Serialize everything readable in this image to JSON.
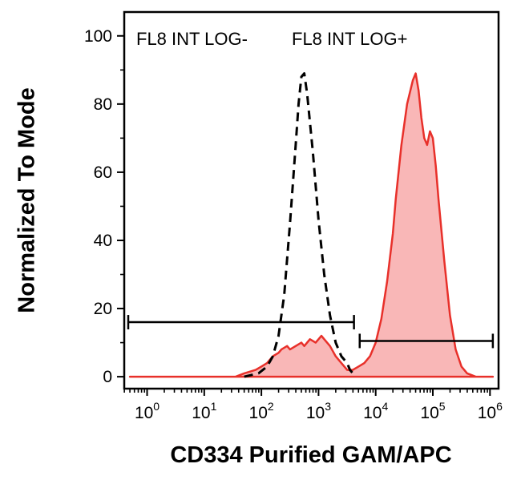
{
  "chart_data": {
    "type": "area",
    "subtype": "flow-cytometry-histogram",
    "title": "",
    "xlabel": "CD334 Purified GAM/APC",
    "ylabel": "Normalized To Mode",
    "x_scale": "log10",
    "x_tick_base": "10",
    "x_tick_exponents": [
      0,
      1,
      2,
      3,
      4,
      5,
      6
    ],
    "y_ticks": [
      0,
      20,
      40,
      60,
      80,
      100
    ],
    "ylim": [
      0,
      100
    ],
    "grid": false,
    "legend": "none",
    "colors": {
      "stained_fill": "#f47c7c",
      "stained_stroke": "#e8302a",
      "control_stroke": "#000000",
      "axis": "#000000"
    },
    "series": [
      {
        "name": "FL8 INT LOG- (control)",
        "style": "dashed",
        "points_log10x_y": [
          [
            1.7,
            0
          ],
          [
            1.95,
            1
          ],
          [
            2.1,
            3
          ],
          [
            2.2,
            6
          ],
          [
            2.3,
            12
          ],
          [
            2.4,
            24
          ],
          [
            2.5,
            45
          ],
          [
            2.6,
            68
          ],
          [
            2.65,
            80
          ],
          [
            2.7,
            88
          ],
          [
            2.75,
            89
          ],
          [
            2.8,
            83
          ],
          [
            2.9,
            66
          ],
          [
            3.0,
            46
          ],
          [
            3.1,
            30
          ],
          [
            3.2,
            18
          ],
          [
            3.3,
            10
          ],
          [
            3.4,
            6
          ],
          [
            3.5,
            4
          ],
          [
            3.55,
            2
          ],
          [
            3.65,
            0
          ]
        ]
      },
      {
        "name": "FL8 INT LOG+ (CD334 stained)",
        "style": "filled",
        "points_log10x_y": [
          [
            -0.3,
            0
          ],
          [
            1.55,
            0
          ],
          [
            1.7,
            1
          ],
          [
            1.9,
            2
          ],
          [
            2.0,
            3
          ],
          [
            2.1,
            4
          ],
          [
            2.2,
            6
          ],
          [
            2.3,
            7
          ],
          [
            2.35,
            8
          ],
          [
            2.45,
            9
          ],
          [
            2.5,
            8
          ],
          [
            2.6,
            9
          ],
          [
            2.7,
            10
          ],
          [
            2.75,
            9
          ],
          [
            2.85,
            11
          ],
          [
            2.95,
            10
          ],
          [
            3.0,
            11
          ],
          [
            3.05,
            12
          ],
          [
            3.1,
            11
          ],
          [
            3.2,
            9
          ],
          [
            3.3,
            6
          ],
          [
            3.4,
            4
          ],
          [
            3.5,
            2
          ],
          [
            3.6,
            2
          ],
          [
            3.7,
            3
          ],
          [
            3.8,
            4
          ],
          [
            3.9,
            6
          ],
          [
            4.0,
            10
          ],
          [
            4.1,
            17
          ],
          [
            4.2,
            28
          ],
          [
            4.3,
            42
          ],
          [
            4.35,
            52
          ],
          [
            4.45,
            68
          ],
          [
            4.55,
            80
          ],
          [
            4.65,
            87
          ],
          [
            4.7,
            89
          ],
          [
            4.75,
            84
          ],
          [
            4.8,
            76
          ],
          [
            4.85,
            70
          ],
          [
            4.9,
            68
          ],
          [
            4.95,
            72
          ],
          [
            5.0,
            70
          ],
          [
            5.05,
            62
          ],
          [
            5.1,
            52
          ],
          [
            5.2,
            34
          ],
          [
            5.3,
            18
          ],
          [
            5.4,
            8
          ],
          [
            5.5,
            3
          ],
          [
            5.6,
            1
          ],
          [
            5.75,
            0
          ],
          [
            6.05,
            0
          ]
        ]
      }
    ],
    "gates": [
      {
        "label": "FL8 INT LOG-",
        "y_value": 16,
        "x_from_log": -0.33,
        "x_to_log": 3.62
      },
      {
        "label": "FL8 INT LOG+",
        "y_value": 10.5,
        "x_from_log": 3.72,
        "x_to_log": 6.05
      }
    ]
  }
}
